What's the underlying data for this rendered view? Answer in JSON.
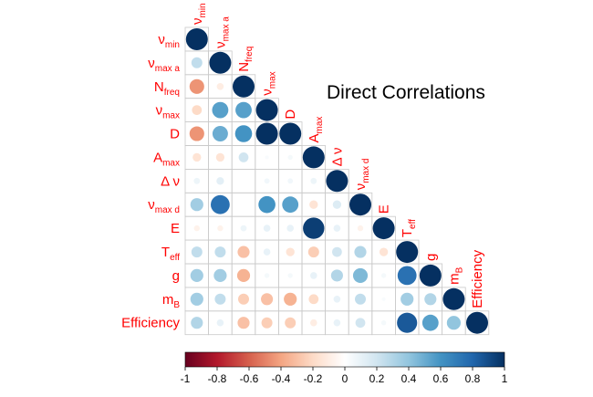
{
  "chart_data": {
    "type": "heatmap",
    "subtype": "correlation-matrix-lower-circles",
    "title": "Direct Correlations",
    "variables": [
      {
        "base": "ν",
        "sub": "min"
      },
      {
        "base": "ν",
        "sub": "max a"
      },
      {
        "base": "N",
        "sub": "freq"
      },
      {
        "base": "ν",
        "sub": "max"
      },
      {
        "base": "D",
        "sub": ""
      },
      {
        "base": "A",
        "sub": "max"
      },
      {
        "base": "Δ ν",
        "sub": ""
      },
      {
        "base": "ν",
        "sub": "max d"
      },
      {
        "base": "E",
        "sub": ""
      },
      {
        "base": "T",
        "sub": "eff"
      },
      {
        "base": "g",
        "sub": ""
      },
      {
        "base": "m",
        "sub": "B"
      },
      {
        "base": "Efficiency",
        "sub": ""
      }
    ],
    "matrix_lower": [
      [
        1
      ],
      [
        0.25,
        1
      ],
      [
        -0.45,
        -0.1,
        1
      ],
      [
        -0.2,
        0.55,
        0.55,
        1
      ],
      [
        -0.45,
        0.5,
        0.6,
        1,
        1
      ],
      [
        -0.15,
        -0.15,
        0.2,
        0.03,
        0.05,
        1
      ],
      [
        0.08,
        0.12,
        0,
        0.06,
        0.06,
        0.08,
        1
      ],
      [
        0.35,
        0.75,
        0,
        0.6,
        0.55,
        -0.15,
        0.15,
        1
      ],
      [
        -0.07,
        -0.07,
        0.08,
        0.1,
        0.1,
        0.95,
        0.1,
        -0.07,
        1
      ],
      [
        0.25,
        0.25,
        -0.3,
        0.1,
        -0.15,
        -0.25,
        0.2,
        0.3,
        -0.15,
        1
      ],
      [
        0.35,
        0.35,
        -0.35,
        0.05,
        0.05,
        0.1,
        0.3,
        0.45,
        0.05,
        0.75,
        1
      ],
      [
        0.35,
        0.25,
        -0.25,
        -0.3,
        -0.35,
        -0.2,
        0.1,
        0.25,
        0.03,
        0.35,
        0.3,
        1
      ],
      [
        0.3,
        0.1,
        -0.3,
        -0.25,
        -0.25,
        -0.1,
        0.1,
        0.2,
        0.05,
        0.85,
        0.55,
        0.4,
        1
      ]
    ],
    "colorbar": {
      "min": -1,
      "max": 1,
      "ticks": [
        "-1",
        "-0.8",
        "-0.6",
        "-0.4",
        "-0.2",
        "0",
        "0.2",
        "0.4",
        "0.6",
        "0.8",
        "1"
      ],
      "colors": {
        "neg_end": "#67001f",
        "neg_mid": "#f4a582",
        "zero": "#ffffff",
        "pos_mid": "#92c5de",
        "pos_end": "#053061"
      }
    },
    "label_color": "#ff0000"
  }
}
